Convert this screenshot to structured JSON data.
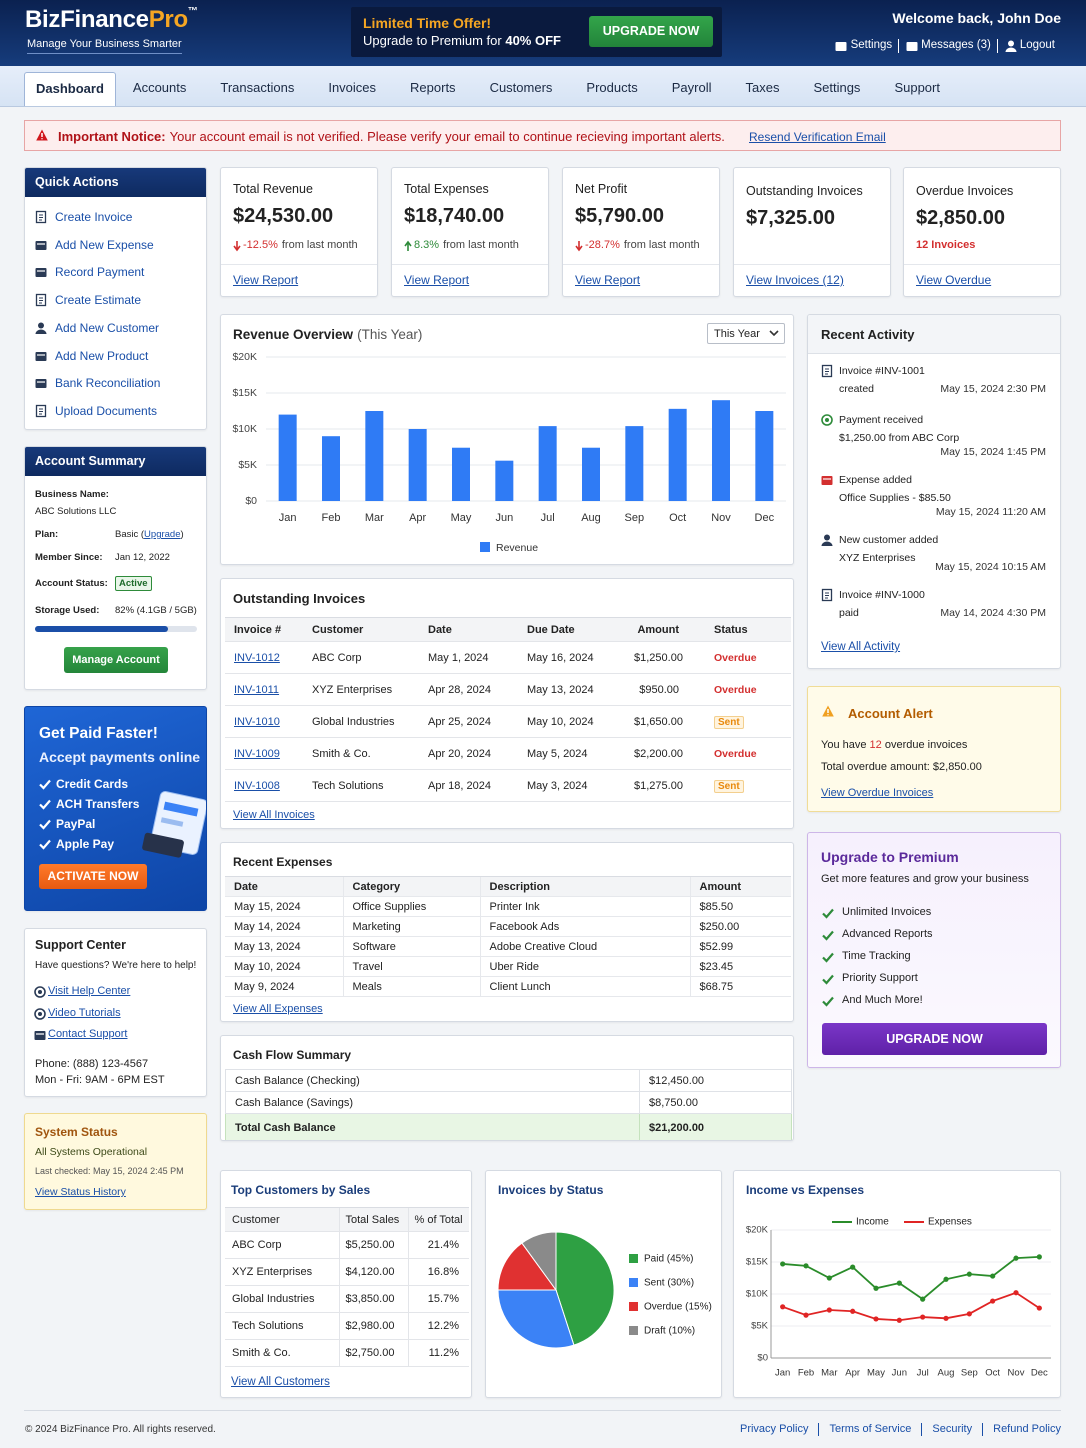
{
  "header": {
    "brand": "BizFinance",
    "brand_accent": "Pro",
    "trademark": "™",
    "tagline": "Manage Your Business Smarter"
  },
  "promo": {
    "title": "Limited Time Offer!",
    "text": "Upgrade to Premium for ",
    "text_bold": "40% OFF",
    "button": "UPGRADE NOW"
  },
  "user": {
    "welcome": "Welcome back, John Doe",
    "links": [
      "Settings",
      "Messages (3)",
      "Logout"
    ]
  },
  "nav": {
    "tabs": [
      "Dashboard",
      "Accounts",
      "Transactions",
      "Invoices",
      "Reports",
      "Customers",
      "Products",
      "Payroll",
      "Taxes",
      "Settings",
      "Support"
    ],
    "active": 0
  },
  "notice": {
    "label": "Important Notice:",
    "text": "Your account email is not verified. Please verify your email to continue recieving important alerts.",
    "link": "Resend Verification Email"
  },
  "quick_actions": {
    "title": "Quick Actions",
    "items": [
      "Create Invoice",
      "Add New Expense",
      "Record Payment",
      "Create Estimate",
      "Add New Customer",
      "Add New Product",
      "Bank Reconciliation",
      "Upload Documents"
    ]
  },
  "account_summary": {
    "title": "Account Summary",
    "fields": [
      {
        "label": "Business Name:",
        "value": "ABC Solutions LLC"
      },
      {
        "label": "Plan:",
        "value": "Basic (",
        "link": "Upgrade",
        "suffix": ")"
      },
      {
        "label": "Member Since:",
        "value": "Jan 12, 2022"
      },
      {
        "label": "Account Status:",
        "badge": "Active"
      },
      {
        "label": "Storage Used:",
        "value": "82% (4.1GB / 5GB)"
      }
    ],
    "storage_percent": 82,
    "button": "Manage Account"
  },
  "payment_promo": {
    "title": "Get Paid Faster!",
    "subtitle": "Accept payments online",
    "items": [
      "Credit Cards",
      "ACH Transfers",
      "PayPal",
      "Apple Pay"
    ],
    "button": "ACTIVATE NOW"
  },
  "support": {
    "title": "Support Center",
    "text": "Have questions? We're here to help!",
    "links": [
      "Visit Help Center",
      "Video Tutorials",
      "Contact Support"
    ],
    "phone": "Phone: (888) 123-4567",
    "hours": "Mon - Fri: 9AM - 6PM EST"
  },
  "system_status": {
    "title": "System Status",
    "status": "All Systems Operational",
    "last_checked": "Last checked: May 15, 2024 2:45 PM",
    "link": "View Status History"
  },
  "kpis": [
    {
      "title": "Total Revenue",
      "value": "$24,530.00",
      "change": "-12.5%",
      "direction": "down",
      "note": "from last month",
      "link": "View Report"
    },
    {
      "title": "Total Expenses",
      "value": "$18,740.00",
      "change": "8.3%",
      "direction": "up",
      "note": "from last month",
      "link": "View Report"
    },
    {
      "title": "Net Profit",
      "value": "$5,790.00",
      "change": "-28.7%",
      "direction": "down",
      "note": "from last month",
      "link": "View Report"
    },
    {
      "title": "Outstanding Invoices",
      "value": "$7,325.00",
      "link": "View Invoices (12)"
    },
    {
      "title": "Overdue Invoices",
      "value": "$2,850.00",
      "sub": "12 Invoices",
      "link": "View Overdue"
    }
  ],
  "revenue_chart": {
    "type": "bar",
    "title": "Revenue Overview",
    "subtitle": "(This Year)",
    "period": "This Year",
    "categories": [
      "Jan",
      "Feb",
      "Mar",
      "Apr",
      "May",
      "Jun",
      "Jul",
      "Aug",
      "Sep",
      "Oct",
      "Nov",
      "Dec"
    ],
    "series": [
      {
        "name": "Revenue",
        "color": "#2f7bf5",
        "values": [
          12000,
          9000,
          12500,
          10000,
          7400,
          5600,
          10400,
          7400,
          10400,
          12800,
          14000,
          12500
        ]
      }
    ],
    "ylim": [
      0,
      20000
    ],
    "yticks": [
      {
        "value": 0,
        "label": "$0"
      },
      {
        "value": 5000,
        "label": "$5K"
      },
      {
        "value": 10000,
        "label": "$10K"
      },
      {
        "value": 15000,
        "label": "$15K"
      },
      {
        "value": 20000,
        "label": "$20K"
      }
    ],
    "grid": true
  },
  "recent_activity": {
    "title": "Recent Activity",
    "items": [
      {
        "title": "Invoice #INV-1001",
        "detail": "created",
        "time": "May 15, 2024 2:30 PM"
      },
      {
        "title": "Payment received",
        "detail": "$1,250.00 from ABC Corp",
        "time": "May 15, 2024 1:45 PM"
      },
      {
        "title": "Expense added",
        "detail": "Office Supplies - $85.50",
        "time": "May 15, 2024 11:20 AM"
      },
      {
        "title": "New customer added",
        "detail": "XYZ Enterprises",
        "time": "May 15, 2024 10:15 AM"
      },
      {
        "title": "Invoice #INV-1000",
        "detail": "paid",
        "time": "May 14, 2024 4:30 PM"
      }
    ],
    "link": "View All Activity"
  },
  "outstanding_invoices": {
    "title": "Outstanding Invoices",
    "headers": [
      "Invoice #",
      "Customer",
      "Date",
      "Due Date",
      "Amount",
      "Status"
    ],
    "rows": [
      [
        "INV-1012",
        "ABC Corp",
        "May 1, 2024",
        "May 16, 2024",
        "$1,250.00",
        "Overdue"
      ],
      [
        "INV-1011",
        "XYZ Enterprises",
        "Apr 28, 2024",
        "May 13, 2024",
        "$950.00",
        "Overdue"
      ],
      [
        "INV-1010",
        "Global Industries",
        "Apr 25, 2024",
        "May 10, 2024",
        "$1,650.00",
        "Sent"
      ],
      [
        "INV-1009",
        "Smith & Co.",
        "Apr 20, 2024",
        "May 5, 2024",
        "$2,200.00",
        "Overdue"
      ],
      [
        "INV-1008",
        "Tech Solutions",
        "Apr 18, 2024",
        "May 3, 2024",
        "$1,275.00",
        "Sent"
      ]
    ],
    "status_styles": [
      "overdue",
      "overdue",
      "sent",
      "overdue",
      "sent"
    ],
    "link": "View All Invoices"
  },
  "account_alert": {
    "title": "Account Alert",
    "text_pre": "You have ",
    "count": "12",
    "text_post": " overdue invoices",
    "total": "Total overdue amount: $2,850.00",
    "link": "View Overdue Invoices"
  },
  "upgrade": {
    "title": "Upgrade to Premium",
    "subtitle": "Get more features and grow your business",
    "features": [
      "Unlimited Invoices",
      "Advanced Reports",
      "Time Tracking",
      "Priority Support",
      "And Much More!"
    ],
    "button": "UPGRADE NOW"
  },
  "recent_expenses": {
    "title": "Recent Expenses",
    "headers": [
      "Date",
      "Category",
      "Description",
      "Amount"
    ],
    "rows": [
      [
        "May 15, 2024",
        "Office Supplies",
        "Printer Ink",
        "$85.50"
      ],
      [
        "May 14, 2024",
        "Marketing",
        "Facebook Ads",
        "$250.00"
      ],
      [
        "May 13, 2024",
        "Software",
        "Adobe Creative Cloud",
        "$52.99"
      ],
      [
        "May 10, 2024",
        "Travel",
        "Uber Ride",
        "$23.45"
      ],
      [
        "May 9, 2024",
        "Meals",
        "Client Lunch",
        "$68.75"
      ]
    ],
    "link": "View All Expenses"
  },
  "cash_flow": {
    "title": "Cash Flow Summary",
    "rows": [
      [
        "Cash Balance (Checking)",
        "$12,450.00"
      ],
      [
        "Cash Balance (Savings)",
        "$8,750.00"
      ],
      [
        "Total Cash Balance",
        "$21,200.00"
      ]
    ]
  },
  "top_customers": {
    "title": "Top Customers by Sales",
    "headers": [
      "Customer",
      "Total Sales",
      "% of Total"
    ],
    "rows": [
      [
        "ABC Corp",
        "$5,250.00",
        "21.4%"
      ],
      [
        "XYZ Enterprises",
        "$4,120.00",
        "16.8%"
      ],
      [
        "Global Industries",
        "$3,850.00",
        "15.7%"
      ],
      [
        "Tech Solutions",
        "$2,980.00",
        "12.2%"
      ],
      [
        "Smith & Co.",
        "$2,750.00",
        "11.2%"
      ]
    ],
    "link": "View All Customers"
  },
  "status_chart": {
    "type": "pie",
    "title": "Invoices by Status",
    "categories": [
      "Paid (45%)",
      "Sent (30%)",
      "Overdue (15%)",
      "Draft (10%)"
    ],
    "values": [
      45,
      30,
      15,
      10
    ],
    "colors": [
      "#2ea043",
      "#3b82f6",
      "#e03131",
      "#8a8a8a"
    ]
  },
  "income_chart": {
    "type": "line",
    "title": "Income vs Expenses",
    "categories": [
      "Jan",
      "Feb",
      "Mar",
      "Apr",
      "May",
      "Jun",
      "Jul",
      "Aug",
      "Sep",
      "Oct",
      "Nov",
      "Dec"
    ],
    "series": [
      {
        "name": "Income",
        "color": "#2a8c2a",
        "values": [
          14700,
          14400,
          12500,
          14200,
          10900,
          11700,
          9200,
          12300,
          13100,
          12800,
          15600,
          15800
        ]
      },
      {
        "name": "Expenses",
        "color": "#e02424",
        "values": [
          8000,
          6700,
          7500,
          7300,
          6100,
          5900,
          6400,
          6200,
          6900,
          8900,
          10200,
          7800
        ]
      }
    ],
    "ylim": [
      0,
      20000
    ],
    "yticks": [
      {
        "value": 0,
        "label": "$0"
      },
      {
        "value": 5000,
        "label": "$5K"
      },
      {
        "value": 10000,
        "label": "$10K"
      },
      {
        "value": 15000,
        "label": "$15K"
      },
      {
        "value": 20000,
        "label": "$20K"
      }
    ],
    "grid": true
  },
  "footer": {
    "copyright": "© 2024 BizFinance Pro. All rights reserved.",
    "links": [
      "Privacy Policy",
      "Terms of Service",
      "Security",
      "Refund Policy"
    ]
  }
}
